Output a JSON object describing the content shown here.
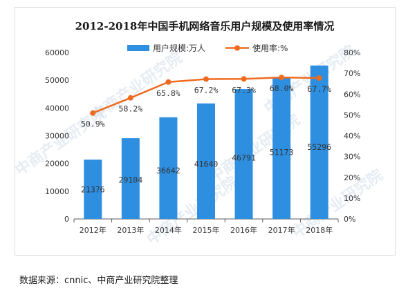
{
  "chart_data": {
    "type": "bar",
    "title": "2012-2018年中国手机网络音乐用户规模及使用率情况",
    "categories": [
      "2012年",
      "2013年",
      "2014年",
      "2015年",
      "2016年",
      "2017年",
      "2018年"
    ],
    "series": [
      {
        "name": "用户规模:万人",
        "type": "bar",
        "axis": "left",
        "values": [
          21376,
          29104,
          36642,
          41640,
          46791,
          51173,
          55296
        ],
        "labels": [
          "21376",
          "29104",
          "36642",
          "41640",
          "46791",
          "51173",
          "55296"
        ]
      },
      {
        "name": "使用率:%",
        "type": "line",
        "axis": "right",
        "values": [
          50.9,
          58.2,
          65.8,
          67.2,
          67.3,
          68.0,
          67.7
        ],
        "labels": [
          "50.9%",
          "58.2%",
          "65.8%",
          "67.2%",
          "67.3%",
          "68.0%",
          "67.7%"
        ]
      }
    ],
    "y_left": {
      "min": 0,
      "max": 60000,
      "ticks": [
        0,
        10000,
        20000,
        30000,
        40000,
        50000,
        60000
      ],
      "tick_labels": [
        "0",
        "10000",
        "20000",
        "30000",
        "40000",
        "50000",
        "60000"
      ]
    },
    "y_right": {
      "min": 0,
      "max": 80,
      "ticks": [
        0,
        10,
        20,
        30,
        40,
        50,
        60,
        70,
        80
      ],
      "tick_labels": [
        "0%",
        "10%",
        "20%",
        "30%",
        "40%",
        "50%",
        "60%",
        "70%",
        "80%"
      ]
    },
    "grid": false,
    "legend": "top-center",
    "colors": {
      "bar": "#2e8fe0",
      "line": "#ee6a1f"
    }
  },
  "watermark": "中商产业研究院",
  "source": "数据来源：cnnic、中商产业研究院整理"
}
